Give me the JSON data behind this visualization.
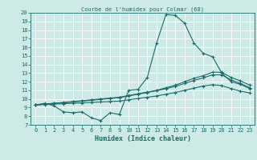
{
  "title": "Courbe de l'humidex pour Colmar (68)",
  "xlabel": "Humidex (Indice chaleur)",
  "bg_color": "#ceeae7",
  "line_color": "#1a6b6b",
  "grid_color": "#ffffff",
  "xlim": [
    -0.5,
    23.5
  ],
  "ylim": [
    7,
    20
  ],
  "xticks": [
    0,
    1,
    2,
    3,
    4,
    5,
    6,
    7,
    8,
    9,
    10,
    11,
    12,
    13,
    14,
    15,
    16,
    17,
    18,
    19,
    20,
    21,
    22,
    23
  ],
  "yticks": [
    7,
    8,
    9,
    10,
    11,
    12,
    13,
    14,
    15,
    16,
    17,
    18,
    19,
    20
  ],
  "series": [
    {
      "x": [
        0,
        1,
        2,
        3,
        4,
        5,
        6,
        7,
        8,
        9,
        10,
        11,
        12,
        13,
        14,
        15,
        16,
        17,
        18,
        19,
        20,
        21,
        22,
        23
      ],
      "y": [
        9.3,
        9.5,
        9.2,
        8.5,
        8.4,
        8.5,
        7.8,
        7.5,
        8.4,
        8.2,
        11.0,
        11.1,
        12.5,
        16.5,
        19.8,
        19.7,
        18.8,
        16.5,
        15.3,
        14.9,
        13.0,
        12.0,
        11.7,
        11.2
      ]
    },
    {
      "x": [
        0,
        1,
        2,
        3,
        4,
        5,
        6,
        7,
        8,
        9,
        10,
        11,
        12,
        13,
        14,
        15,
        16,
        17,
        18,
        19,
        20,
        21,
        22,
        23
      ],
      "y": [
        9.3,
        9.4,
        9.5,
        9.6,
        9.7,
        9.8,
        9.9,
        10.0,
        10.1,
        10.2,
        10.4,
        10.6,
        10.8,
        11.0,
        11.3,
        11.6,
        12.0,
        12.4,
        12.7,
        13.1,
        13.1,
        12.5,
        12.1,
        11.6
      ]
    },
    {
      "x": [
        0,
        1,
        2,
        3,
        4,
        5,
        6,
        7,
        8,
        9,
        10,
        11,
        12,
        13,
        14,
        15,
        16,
        17,
        18,
        19,
        20,
        21,
        22,
        23
      ],
      "y": [
        9.3,
        9.4,
        9.5,
        9.55,
        9.65,
        9.75,
        9.85,
        9.95,
        10.05,
        10.15,
        10.35,
        10.55,
        10.75,
        10.95,
        11.2,
        11.45,
        11.8,
        12.15,
        12.45,
        12.8,
        12.8,
        12.2,
        11.8,
        11.3
      ]
    },
    {
      "x": [
        0,
        1,
        2,
        3,
        4,
        5,
        6,
        7,
        8,
        9,
        10,
        11,
        12,
        13,
        14,
        15,
        16,
        17,
        18,
        19,
        20,
        21,
        22,
        23
      ],
      "y": [
        9.3,
        9.35,
        9.4,
        9.45,
        9.5,
        9.55,
        9.6,
        9.65,
        9.7,
        9.75,
        9.9,
        10.05,
        10.2,
        10.35,
        10.55,
        10.75,
        11.0,
        11.25,
        11.5,
        11.65,
        11.55,
        11.2,
        10.9,
        10.7
      ]
    }
  ]
}
